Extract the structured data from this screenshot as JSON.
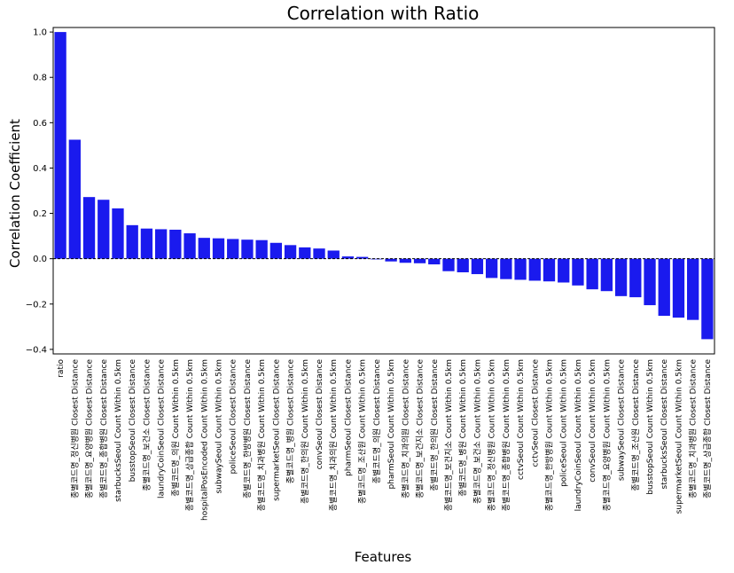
{
  "chart_data": {
    "type": "bar",
    "title": "Correlation with Ratio",
    "xlabel": "Features",
    "ylabel": "Correlation Coefficient",
    "ylim": [
      -0.42,
      1.02
    ],
    "yticks": [
      1.0,
      0.8,
      0.6,
      0.4,
      0.2,
      0.0,
      -0.2,
      -0.4
    ],
    "ytick_labels": [
      "1.0",
      "0.8",
      "0.6",
      "0.4",
      "0.2",
      "0.0",
      "−0.2",
      "−0.4"
    ],
    "bar_color": "#1a1aee",
    "zero_line": "dashed",
    "grid": false,
    "categories": [
      "ratio",
      "종별코드명_정신병원 Closest Distance",
      "종별코드명_요양병원 Closest Distance",
      "종별코드명_종합병원 Closest Distance",
      "starbucksSeoul Count Within 0.5km",
      "busstopSeoul Closest Distance",
      "종별코드명_보건소 Closest Distance",
      "laundryCoinSeoul Closest Distance",
      "종별코드명_의원 Count Within 0.5km",
      "종별코드명_상급종합 Count Within 0.5km",
      "hospitalPosEncoded Count Within 0.5km",
      "subwaySeoul Count Within 0.5km",
      "policeSeoul Closest Distance",
      "종별코드명_한방병원 Closest Distance",
      "종별코드명_치과병원 Count Within 0.5km",
      "supermarketSeoul Closest Distance",
      "종별코드명_병원 Closest Distance",
      "종별코드명_한의원 Count Within 0.5km",
      "convSeoul Closest Distance",
      "종별코드명_치과의원 Count Within 0.5km",
      "pharmSeoul Closest Distance",
      "종별코드명_조산원 Count Within 0.5km",
      "종별코드명_의원 Closest Distance",
      "pharmSeoul Count Within 0.5km",
      "종별코드명_치과의원 Closest Distance",
      "종별코드명_보건지소 Closest Distance",
      "종별코드명_한의원 Closest Distance",
      "종별코드명_보건지소 Count Within 0.5km",
      "종별코드명_병원 Count Within 0.5km",
      "종별코드명_보건소 Count Within 0.5km",
      "종별코드명_정신병원 Count Within 0.5km",
      "종별코드명_종합병원 Count Within 0.5km",
      "cctvSeoul Count Within 0.5km",
      "cctvSeoul Closest Distance",
      "종별코드명_한방병원 Count Within 0.5km",
      "policeSeoul Count Within 0.5km",
      "laundryCoinSeoul Count Within 0.5km",
      "convSeoul Count Within 0.5km",
      "종별코드명_요양병원 Count Within 0.5km",
      "subwaySeoul Closest Distance",
      "종별코드명_조산원 Closest Distance",
      "busstopSeoul Count Within 0.5km",
      "starbucksSeoul Closest Distance",
      "supermarketSeoul Count Within 0.5km",
      "종별코드명_치과병원 Closest Distance",
      "종별코드명_상급종합 Closest Distance"
    ],
    "values": [
      1.0,
      0.525,
      0.272,
      0.26,
      0.222,
      0.148,
      0.133,
      0.13,
      0.128,
      0.112,
      0.092,
      0.09,
      0.087,
      0.084,
      0.082,
      0.07,
      0.06,
      0.05,
      0.045,
      0.036,
      0.01,
      0.008,
      -0.003,
      -0.012,
      -0.018,
      -0.02,
      -0.025,
      -0.055,
      -0.06,
      -0.068,
      -0.085,
      -0.09,
      -0.093,
      -0.097,
      -0.1,
      -0.105,
      -0.118,
      -0.135,
      -0.143,
      -0.165,
      -0.17,
      -0.205,
      -0.252,
      -0.26,
      -0.27,
      -0.355
    ]
  }
}
